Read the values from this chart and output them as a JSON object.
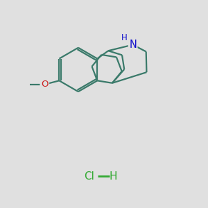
{
  "bg_color": "#e0e0e0",
  "bond_color": "#3a7a6a",
  "N_color": "#1111cc",
  "O_color": "#cc2222",
  "HCl_color": "#33aa33",
  "lw": 1.6,
  "figsize": [
    3.0,
    3.0
  ],
  "dpi": 100,
  "xlim": [
    0,
    10
  ],
  "ylim": [
    -1.5,
    10.5
  ]
}
